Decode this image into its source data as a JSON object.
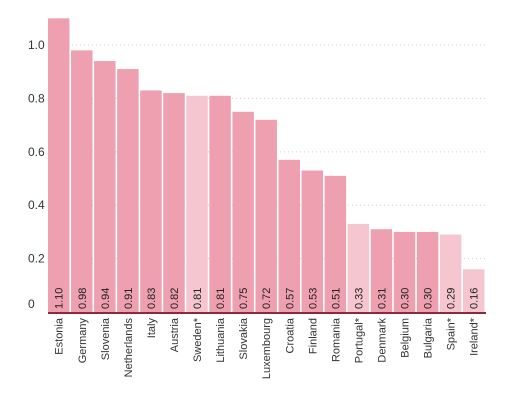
{
  "chart_data": {
    "type": "bar",
    "categories": [
      "Estonia",
      "Germany",
      "Slovenia",
      "Netherlands",
      "Italy",
      "Austria",
      "Sweden*",
      "Lithuania",
      "Slovakia",
      "Luxembourg",
      "Croatia",
      "Finland",
      "Romania",
      "Portugal*",
      "Denmark",
      "Belgium",
      "Bulgaria",
      "Spain*",
      "Ireland*"
    ],
    "values": [
      1.1,
      0.98,
      0.94,
      0.91,
      0.83,
      0.82,
      0.81,
      0.81,
      0.75,
      0.72,
      0.57,
      0.53,
      0.51,
      0.33,
      0.31,
      0.3,
      0.3,
      0.29,
      0.16
    ],
    "value_labels": [
      "1.10",
      "0.98",
      "0.94",
      "0.91",
      "0.83",
      "0.82",
      "0.81",
      "0.81",
      "0.75",
      "0.72",
      "0.57",
      "0.53",
      "0.51",
      "0.33",
      "0.31",
      "0.30",
      "0.30",
      "0.29",
      "0.16"
    ],
    "highlighted": [
      false,
      false,
      false,
      false,
      false,
      false,
      true,
      false,
      false,
      false,
      false,
      false,
      false,
      true,
      false,
      false,
      false,
      true,
      true
    ],
    "y_ticks": [
      0,
      0.2,
      0.4,
      0.6,
      0.8,
      1.0
    ],
    "y_tick_labels": [
      "0",
      "0.2",
      "0.4",
      "0.6",
      "0.8",
      "1.0"
    ],
    "ylim": [
      0,
      1.12
    ],
    "grid": true,
    "title": "",
    "xlabel": "",
    "ylabel": "",
    "colors": {
      "bar": "#ee9fb0",
      "bar_highlight": "#f5c6d0",
      "axis": "#8a2a3a",
      "grid": "#cfcfcf"
    }
  }
}
